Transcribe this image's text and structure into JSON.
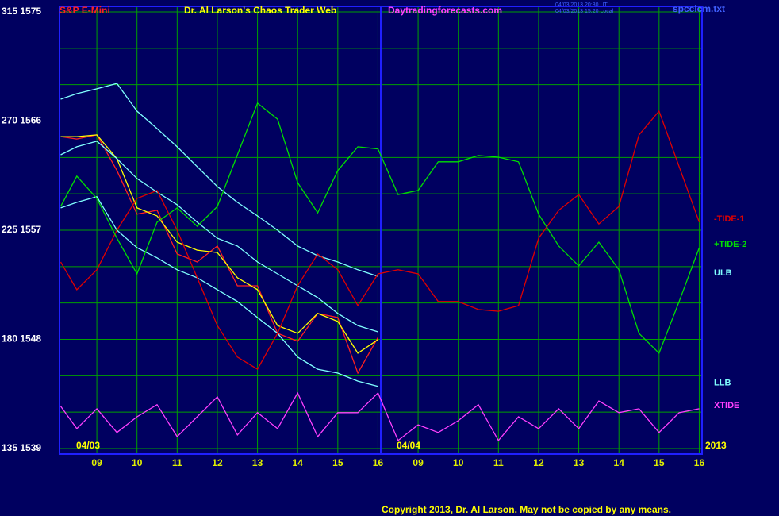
{
  "chart_data": {
    "type": "line",
    "title": "Dr. Al Larson's Chaos Trader Web",
    "instrument": "S&P E-Mini",
    "website": "Daytradingforecasts.com",
    "timestamps": [
      "04/03/2013 20:30 UT",
      "04/03/2013 15:20 Local"
    ],
    "file": "spcclcm.txt",
    "date_labels": [
      "04/03",
      "04/04",
      "2013"
    ],
    "copyright": "Copyright 2013, Dr. Al Larson. May not be copied by any means.",
    "grid": true,
    "grid_color": "#00a000",
    "xlim": [
      -0.93,
      15.07
    ],
    "ylim": [
      135,
      315
    ],
    "xticks": [
      {
        "value": 0,
        "label": "09"
      },
      {
        "value": 1,
        "label": "10"
      },
      {
        "value": 2,
        "label": "11"
      },
      {
        "value": 3,
        "label": "12"
      },
      {
        "value": 4,
        "label": "13"
      },
      {
        "value": 5,
        "label": "14"
      },
      {
        "value": 6,
        "label": "15"
      },
      {
        "value": 7,
        "label": "16"
      },
      {
        "value": 8,
        "label": "09"
      },
      {
        "value": 9,
        "label": "10"
      },
      {
        "value": 10,
        "label": "11"
      },
      {
        "value": 11,
        "label": "12"
      },
      {
        "value": 12,
        "label": "13"
      },
      {
        "value": 13,
        "label": "14"
      },
      {
        "value": 14,
        "label": "15"
      },
      {
        "value": 15,
        "label": "16"
      }
    ],
    "yticks": [
      {
        "value": 135,
        "label": "135 1539"
      },
      {
        "value": 180,
        "label": "180 1548"
      },
      {
        "value": 225,
        "label": "225 1557"
      },
      {
        "value": 270,
        "label": "270 1566"
      },
      {
        "value": 315,
        "label": "315 1575"
      }
    ],
    "ygrid": [
      150,
      165,
      195,
      210,
      240,
      255,
      285,
      300
    ],
    "x": [
      -0.9,
      -0.5,
      0,
      0.5,
      1,
      1.5,
      2,
      2.5,
      3,
      3.5,
      4,
      4.5,
      5,
      5.5,
      6,
      6.5,
      7,
      7.5,
      8,
      8.5,
      9,
      9.5,
      10,
      10.5,
      11,
      11.5,
      12,
      12.5,
      13,
      13.5,
      14,
      14.5,
      15
    ],
    "series": [
      {
        "name": null,
        "color": "#ff2020",
        "values": [
          263.6,
          262.6,
          264.3,
          249.6,
          231.6,
          233.2,
          215.2,
          211.9,
          218.5,
          202.1,
          202.1,
          182.5,
          179.2,
          190.7,
          189.0,
          166.1,
          180.8,
          null,
          null,
          null,
          null,
          null,
          null,
          null,
          null,
          null,
          null,
          null,
          null,
          null,
          null,
          null,
          null
        ]
      },
      {
        "name": null,
        "color": "#ffff00",
        "values": [
          263.6,
          263.6,
          264.3,
          254.5,
          234.2,
          230.9,
          220.1,
          216.8,
          215.8,
          205.4,
          200.5,
          185.7,
          182.5,
          190.7,
          187.4,
          174.3,
          179.9,
          null,
          null,
          null,
          null,
          null,
          null,
          null,
          null,
          null,
          null,
          null,
          null,
          null,
          null,
          null,
          null
        ]
      },
      {
        "name": "ULB",
        "color": "#80ffff",
        "values": [
          279.0,
          281.3,
          283.3,
          285.5,
          274.1,
          266.9,
          259.4,
          251.2,
          243.0,
          236.5,
          230.9,
          225.0,
          218.5,
          214.5,
          211.9,
          208.7,
          206.0,
          null,
          null,
          null,
          null,
          null,
          null,
          null,
          null,
          null,
          null,
          null,
          null,
          null,
          null,
          null,
          null
        ]
      },
      {
        "name": null,
        "color": "#80ffff",
        "values": [
          256.1,
          259.4,
          261.7,
          254.5,
          246.3,
          240.7,
          235.5,
          228.3,
          221.7,
          218.5,
          211.9,
          207.0,
          202.1,
          197.2,
          190.7,
          185.7,
          183.1,
          null,
          null,
          null,
          null,
          null,
          null,
          null,
          null,
          null,
          null,
          null,
          null,
          null,
          null,
          null,
          null
        ]
      },
      {
        "name": "LLB",
        "color": "#80ffff",
        "values": [
          234.2,
          236.5,
          238.8,
          225.0,
          217.8,
          213.6,
          208.7,
          205.4,
          200.5,
          195.6,
          189.0,
          182.5,
          172.7,
          167.7,
          166.1,
          162.8,
          160.6,
          null,
          null,
          null,
          null,
          null,
          null,
          null,
          null,
          null,
          null,
          null,
          null,
          null,
          null,
          null,
          null
        ]
      },
      {
        "name": "-TIDE-1",
        "color": "#e00000",
        "values": [
          211.9,
          200.5,
          208.7,
          225.0,
          238.1,
          241.4,
          225.0,
          205.4,
          185.7,
          172.7,
          167.7,
          182.5,
          202.1,
          215.2,
          208.7,
          193.9,
          207.0,
          208.7,
          207.0,
          195.6,
          195.6,
          192.3,
          191.6,
          193.9,
          221.7,
          233.2,
          239.7,
          227.6,
          234.8,
          264.3,
          274.1,
          251.2,
          228.3
        ]
      },
      {
        "name": "+TIDE-2",
        "color": "#00e000",
        "values": [
          234.8,
          247.3,
          238.1,
          221.7,
          207.0,
          228.3,
          234.2,
          226.6,
          234.8,
          256.1,
          277.4,
          270.8,
          244.6,
          232.2,
          249.6,
          259.4,
          258.5,
          239.7,
          241.4,
          253.2,
          253.2,
          255.8,
          255.1,
          253.2,
          231.6,
          218.5,
          210.3,
          220.1,
          208.7,
          182.5,
          174.3,
          195.6,
          217.8
        ]
      },
      {
        "name": "XTIDE",
        "color": "#ff40ff",
        "values": [
          152.4,
          143.2,
          151.4,
          141.6,
          148.1,
          153.1,
          139.9,
          148.1,
          156.3,
          140.6,
          149.8,
          143.2,
          157.9,
          139.9,
          149.8,
          149.8,
          157.9,
          138.3,
          144.8,
          141.6,
          146.5,
          153.1,
          138.3,
          148.1,
          143.2,
          151.4,
          143.2,
          154.6,
          149.8,
          151.4,
          141.6,
          149.8,
          151.4
        ]
      }
    ]
  }
}
